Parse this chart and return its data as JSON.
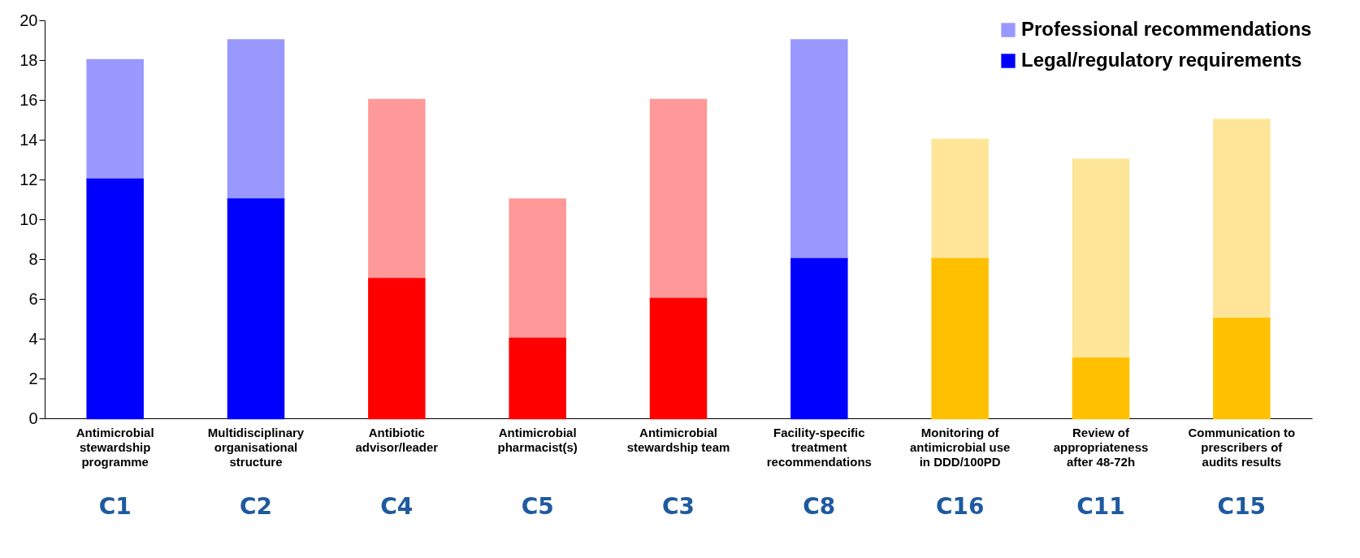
{
  "chart_data": {
    "type": "bar",
    "stacked": true,
    "categories": [
      "Antimicrobial stewardship programme",
      "Multidisciplinary organisational structure",
      "Antibiotic advisor/leader",
      "Antimicrobial pharmacist(s)",
      "Antimicrobial stewardship team",
      "Facility-specific treatment recommendations",
      "Monitoring of antimicrobial use in DDD/100PD",
      "Review of appropriateness after 48-72h",
      "Communication to prescribers of audits results"
    ],
    "series": [
      {
        "name": "Legal/regulatory requirements",
        "colors": [
          "#0000ff",
          "#0000ff",
          "#ff0000",
          "#ff0000",
          "#ff0000",
          "#0000ff",
          "#ffc000",
          "#ffc000",
          "#ffc000"
        ],
        "values": [
          12,
          11,
          7,
          4,
          6,
          8,
          8,
          3,
          5
        ]
      },
      {
        "name": "Professional recommendations",
        "colors": [
          "#0000ff",
          "#0000ff",
          "#ff0000",
          "#ff0000",
          "#ff0000",
          "#0000ff",
          "#ffc000",
          "#ffc000",
          "#ffc000"
        ],
        "values": [
          6,
          8,
          9,
          7,
          10,
          11,
          6,
          10,
          10
        ]
      }
    ],
    "ylim": [
      0,
      20
    ],
    "yticks": [
      0,
      2,
      4,
      6,
      8,
      10,
      12,
      14,
      16,
      18,
      20
    ],
    "grid": false,
    "legend": "top right",
    "annotations": [
      "C1",
      "C2",
      "C4",
      "C5",
      "C3",
      "C8",
      "C16",
      "C11",
      "C15"
    ]
  }
}
